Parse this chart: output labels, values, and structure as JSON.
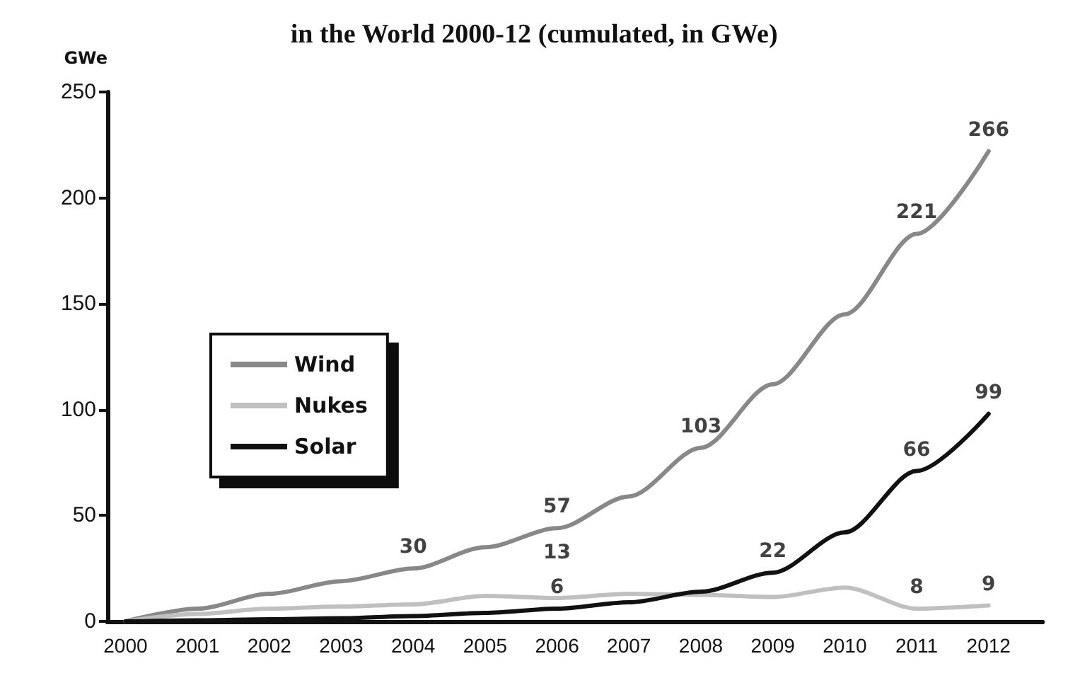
{
  "chart_data": {
    "type": "line",
    "title": "in the World 2000-12 (cumulated, in GWe)",
    "ylabel": "GWe",
    "x": [
      2000,
      2001,
      2002,
      2003,
      2004,
      2005,
      2006,
      2007,
      2008,
      2009,
      2010,
      2011,
      2012
    ],
    "xlim": [
      1999.75,
      2012.75
    ],
    "xticks": [
      2000,
      2001,
      2002,
      2003,
      2004,
      2005,
      2006,
      2007,
      2008,
      2009,
      2010,
      2011,
      2012
    ],
    "ylim": [
      0,
      250
    ],
    "yticks": [
      0,
      50,
      100,
      150,
      200,
      250
    ],
    "series": [
      {
        "name": "Wind",
        "color": "#888888",
        "values": [
          0,
          6,
          13,
          19,
          25,
          35,
          44,
          59,
          82,
          112,
          145,
          183,
          222
        ]
      },
      {
        "name": "Nukes",
        "color": "#c0c0c0",
        "values": [
          0,
          3.5,
          6,
          7,
          8,
          12,
          11,
          13,
          12.5,
          11.5,
          16,
          6,
          7.5
        ]
      },
      {
        "name": "Solar",
        "color": "#111111",
        "values": [
          0,
          0.5,
          1,
          1.5,
          2.5,
          4,
          6,
          9,
          14,
          23,
          42,
          71,
          98
        ]
      }
    ],
    "annotations": [
      {
        "text": "30",
        "x": 2004,
        "y": 25
      },
      {
        "text": "57",
        "x": 2006,
        "y": 44
      },
      {
        "text": "103",
        "x": 2008,
        "y": 82
      },
      {
        "text": "221",
        "x": 2011,
        "y": 183
      },
      {
        "text": "266",
        "x": 2012,
        "y": 222
      },
      {
        "text": "13",
        "x": 2006,
        "y": 11
      },
      {
        "text": "8",
        "x": 2011,
        "y": 6
      },
      {
        "text": "9",
        "x": 2012,
        "y": 7.5
      },
      {
        "text": "6",
        "x": 2006,
        "y": 6
      },
      {
        "text": "22",
        "x": 2009,
        "y": 23
      },
      {
        "text": "66",
        "x": 2011,
        "y": 71
      },
      {
        "text": "99",
        "x": 2012,
        "y": 98
      }
    ],
    "legend": "left",
    "grid": false,
    "marker": "none",
    "line_style": "solid"
  }
}
